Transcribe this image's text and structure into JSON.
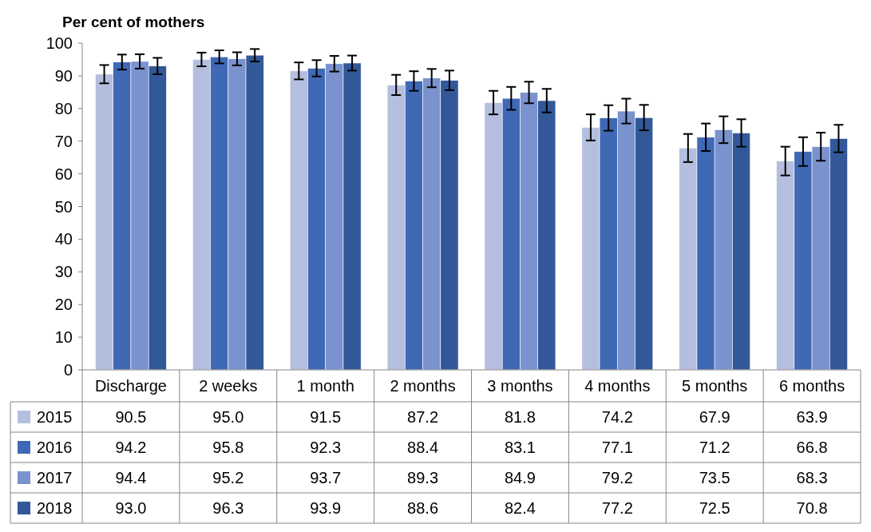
{
  "chart_data": {
    "type": "bar",
    "ylabel": "Per cent of mothers",
    "categories": [
      "Discharge",
      "2 weeks",
      "1 month",
      "2 months",
      "3 months",
      "4 months",
      "5 months",
      "6 months"
    ],
    "series": [
      {
        "name": "2015",
        "color": "#b4bfdf",
        "values": [
          90.5,
          95.0,
          91.5,
          87.2,
          81.8,
          74.2,
          67.9,
          63.9
        ],
        "value_labels": [
          "90.5",
          "95.0",
          "91.5",
          "87.2",
          "81.8",
          "74.2",
          "67.9",
          "63.9"
        ],
        "errors": [
          2.8,
          2.1,
          2.6,
          3.1,
          3.6,
          4.0,
          4.3,
          4.4
        ]
      },
      {
        "name": "2016",
        "color": "#3f69b5",
        "values": [
          94.2,
          95.8,
          92.3,
          88.4,
          83.1,
          77.1,
          71.2,
          66.8
        ],
        "value_labels": [
          "94.2",
          "95.8",
          "92.3",
          "88.4",
          "83.1",
          "77.1",
          "71.2",
          "66.8"
        ],
        "errors": [
          2.3,
          2.0,
          2.5,
          3.0,
          3.5,
          3.9,
          4.2,
          4.4
        ]
      },
      {
        "name": "2017",
        "color": "#7a92ce",
        "values": [
          94.4,
          95.2,
          93.7,
          89.3,
          84.9,
          79.2,
          73.5,
          68.3
        ],
        "value_labels": [
          "94.4",
          "95.2",
          "93.7",
          "89.3",
          "84.9",
          "79.2",
          "73.5",
          "68.3"
        ],
        "errors": [
          2.2,
          2.0,
          2.4,
          2.8,
          3.3,
          3.8,
          4.1,
          4.3
        ]
      },
      {
        "name": "2018",
        "color": "#325899",
        "values": [
          93.0,
          96.3,
          93.9,
          88.6,
          82.4,
          77.2,
          72.5,
          70.8
        ],
        "value_labels": [
          "93.0",
          "96.3",
          "93.9",
          "88.6",
          "82.4",
          "77.2",
          "72.5",
          "70.8"
        ],
        "errors": [
          2.5,
          1.9,
          2.3,
          3.0,
          3.6,
          3.9,
          4.2,
          4.2
        ]
      }
    ],
    "ylim": [
      0,
      100
    ],
    "yticks": [
      0,
      10,
      20,
      30,
      40,
      50,
      60,
      70,
      80,
      90,
      100
    ],
    "legend": "bottom left",
    "grid": false
  }
}
